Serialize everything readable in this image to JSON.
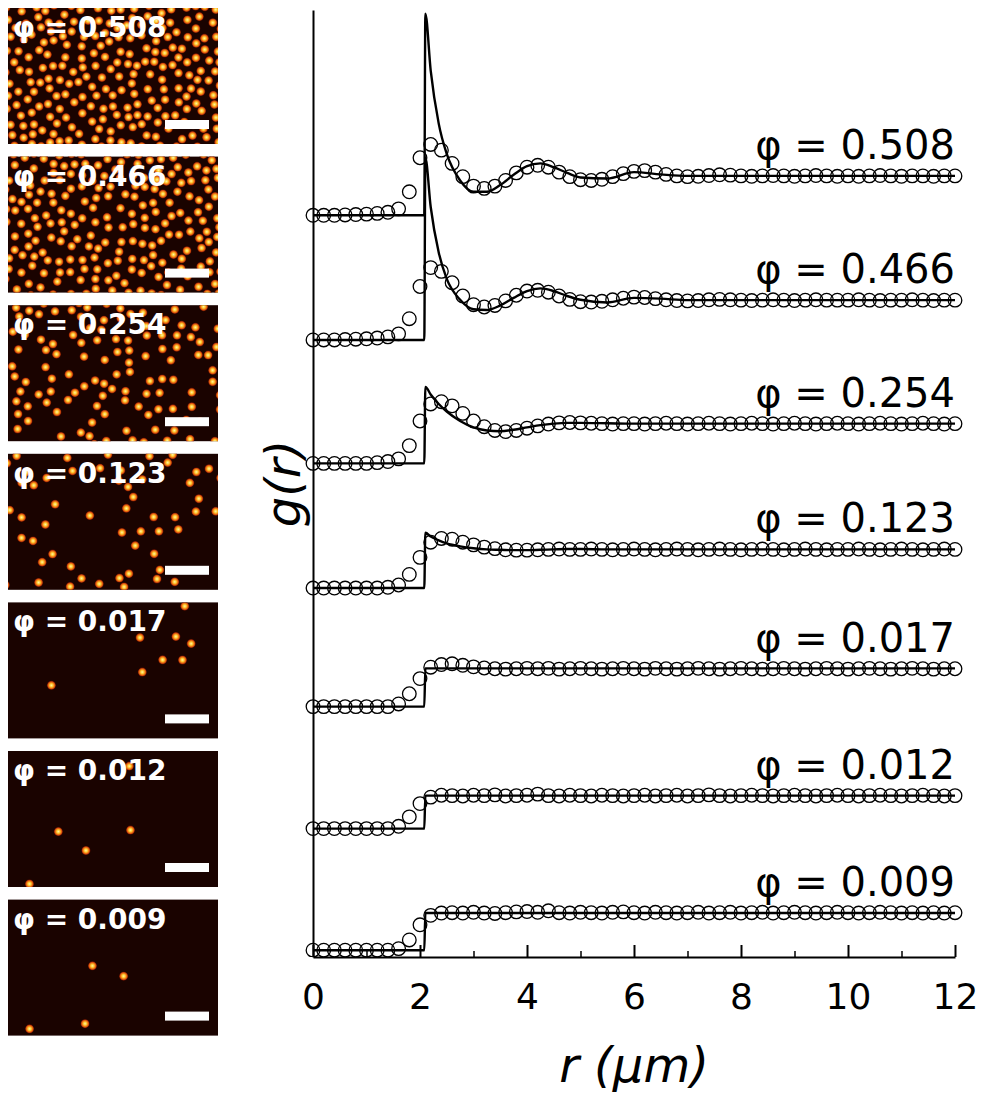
{
  "chart_data": {
    "type": "line",
    "x_label": "r (μm)",
    "y_label": "g(r)",
    "xlim": [
      0,
      12
    ],
    "xticks": [
      0,
      2,
      4,
      6,
      8,
      10,
      12
    ],
    "minor_xticks": [
      1,
      3,
      5,
      7,
      9,
      11
    ],
    "ylim": [
      0,
      25
    ],
    "tick_labels": "x",
    "grid": false,
    "color": "#000000",
    "marker": "circle",
    "line_style": "solid",
    "x": [
      0,
      0.2,
      0.4,
      0.6,
      0.8,
      1,
      1.2,
      1.4,
      1.6,
      1.8,
      2,
      2.2,
      2.4,
      2.6,
      2.8,
      3,
      3.2,
      3.4,
      3.6,
      3.8,
      4,
      4.2,
      4.4,
      4.6,
      4.8,
      5,
      5.2,
      5.4,
      5.6,
      5.8,
      6,
      6.2,
      6.4,
      6.6,
      6.8,
      7,
      7.2,
      7.4,
      7.6,
      7.8,
      8,
      8.2,
      8.4,
      8.6,
      8.8,
      9,
      9.2,
      9.4,
      9.6,
      9.8,
      10,
      10.2,
      10.4,
      10.6,
      10.8,
      11,
      11.2,
      11.4,
      11.6,
      11.8,
      12
    ],
    "fit_x": [
      0,
      2.08,
      2.1,
      2.2,
      2.35,
      2.5,
      2.75,
      3,
      3.25,
      3.5,
      3.75,
      4,
      4.25,
      4.5,
      4.75,
      5,
      5.5,
      6,
      6.5,
      7,
      8,
      9,
      10,
      11,
      12
    ],
    "series": [
      {
        "name": "φ = 0.508",
        "phi": 0.508,
        "values": [
          19.58,
          19.58,
          19.58,
          19.59,
          19.6,
          19.61,
          19.63,
          19.66,
          19.75,
          20.2,
          21.1,
          21.45,
          21.3,
          20.95,
          20.6,
          20.35,
          20.29,
          20.35,
          20.5,
          20.7,
          20.85,
          20.9,
          20.85,
          20.72,
          20.6,
          20.52,
          20.5,
          20.53,
          20.6,
          20.68,
          20.74,
          20.76,
          20.72,
          20.66,
          20.62,
          20.6,
          20.61,
          20.63,
          20.65,
          20.64,
          20.62,
          20.61,
          20.62,
          20.63,
          20.62,
          20.61,
          20.62,
          20.63,
          20.62,
          20.61,
          20.62,
          20.61,
          20.62,
          20.63,
          20.62,
          20.61,
          20.62,
          20.62,
          20.61,
          20.62,
          20.62
        ],
        "fit_values": [
          19.58,
          19.58,
          24.9,
          23.4,
          22.0,
          21.2,
          20.5,
          20.2,
          20.2,
          20.38,
          20.65,
          20.88,
          20.95,
          20.85,
          20.7,
          20.58,
          20.55,
          20.72,
          20.66,
          20.62,
          20.62,
          20.62,
          20.62,
          20.62,
          20.62
        ]
      },
      {
        "name": "φ = 0.466",
        "phi": 0.466,
        "values": [
          16.29,
          16.29,
          16.29,
          16.3,
          16.31,
          16.32,
          16.34,
          16.37,
          16.45,
          16.85,
          17.7,
          18.2,
          18.1,
          17.8,
          17.45,
          17.22,
          17.16,
          17.2,
          17.32,
          17.47,
          17.58,
          17.6,
          17.55,
          17.45,
          17.36,
          17.3,
          17.29,
          17.31,
          17.35,
          17.39,
          17.42,
          17.41,
          17.38,
          17.35,
          17.33,
          17.32,
          17.33,
          17.35,
          17.36,
          17.35,
          17.34,
          17.33,
          17.34,
          17.35,
          17.34,
          17.33,
          17.34,
          17.35,
          17.34,
          17.34,
          17.34,
          17.35,
          17.34,
          17.33,
          17.34,
          17.34,
          17.35,
          17.34,
          17.33,
          17.34,
          17.34
        ],
        "fit_values": [
          16.29,
          16.29,
          21.1,
          19.8,
          18.6,
          17.9,
          17.35,
          17.1,
          17.08,
          17.2,
          17.4,
          17.58,
          17.65,
          17.58,
          17.45,
          17.35,
          17.28,
          17.4,
          17.38,
          17.34,
          17.34,
          17.34,
          17.34,
          17.34,
          17.34
        ]
      },
      {
        "name": "φ = 0.254",
        "phi": 0.254,
        "values": [
          13.03,
          13.03,
          13.03,
          13.03,
          13.03,
          13.03,
          13.05,
          13.08,
          13.15,
          13.5,
          14.15,
          14.6,
          14.66,
          14.55,
          14.35,
          14.15,
          14.0,
          13.9,
          13.87,
          13.9,
          13.96,
          14.02,
          14.07,
          14.1,
          14.11,
          14.1,
          14.09,
          14.08,
          14.07,
          14.08,
          14.08,
          14.07,
          14.08,
          14.09,
          14.08,
          14.07,
          14.08,
          14.09,
          14.08,
          14.07,
          14.08,
          14.09,
          14.08,
          14.07,
          14.08,
          14.09,
          14.08,
          14.07,
          14.08,
          14.09,
          14.08,
          14.07,
          14.08,
          14.09,
          14.08,
          14.07,
          14.08,
          14.09,
          14.08,
          14.07,
          14.08
        ],
        "fit_values": [
          13.03,
          13.03,
          15.05,
          14.85,
          14.6,
          14.4,
          14.15,
          13.98,
          13.9,
          13.88,
          13.92,
          13.98,
          14.04,
          14.08,
          14.1,
          14.1,
          14.09,
          14.08,
          14.08,
          14.08,
          14.08,
          14.08,
          14.08,
          14.08,
          14.08
        ]
      },
      {
        "name": "φ = 0.123",
        "phi": 0.123,
        "values": [
          9.74,
          9.74,
          9.74,
          9.74,
          9.74,
          9.74,
          9.74,
          9.76,
          9.82,
          10.1,
          10.55,
          10.95,
          11.05,
          11.03,
          10.95,
          10.88,
          10.82,
          10.78,
          10.75,
          10.74,
          10.74,
          10.75,
          10.76,
          10.77,
          10.76,
          10.76,
          10.77,
          10.76,
          10.75,
          10.76,
          10.77,
          10.76,
          10.75,
          10.76,
          10.77,
          10.76,
          10.75,
          10.76,
          10.77,
          10.76,
          10.75,
          10.76,
          10.77,
          10.76,
          10.75,
          10.76,
          10.77,
          10.76,
          10.75,
          10.76,
          10.76,
          10.77,
          10.76,
          10.75,
          10.76,
          10.77,
          10.76,
          10.75,
          10.76,
          10.77,
          10.76
        ],
        "fit_values": [
          9.74,
          9.74,
          11.2,
          11.1,
          11.0,
          10.92,
          10.84,
          10.79,
          10.76,
          10.75,
          10.74,
          10.74,
          10.75,
          10.76,
          10.77,
          10.77,
          10.76,
          10.76,
          10.76,
          10.76,
          10.76,
          10.76,
          10.76,
          10.76,
          10.76
        ]
      },
      {
        "name": "φ = 0.017",
        "phi": 0.017,
        "values": [
          6.61,
          6.61,
          6.61,
          6.61,
          6.61,
          6.61,
          6.61,
          6.61,
          6.68,
          6.95,
          7.35,
          7.65,
          7.72,
          7.74,
          7.7,
          7.66,
          7.63,
          7.61,
          7.6,
          7.61,
          7.62,
          7.61,
          7.62,
          7.6,
          7.61,
          7.62,
          7.61,
          7.6,
          7.61,
          7.62,
          7.61,
          7.6,
          7.62,
          7.61,
          7.6,
          7.61,
          7.62,
          7.61,
          7.6,
          7.61,
          7.62,
          7.61,
          7.6,
          7.61,
          7.62,
          7.61,
          7.6,
          7.61,
          7.62,
          7.61,
          7.6,
          7.61,
          7.62,
          7.61,
          7.6,
          7.61,
          7.62,
          7.61,
          7.6,
          7.61,
          7.61
        ],
        "fit_values": [
          6.61,
          6.61,
          7.62,
          7.62,
          7.62,
          7.62,
          7.62,
          7.62,
          7.62,
          7.62,
          7.62,
          7.62,
          7.62,
          7.62,
          7.62,
          7.62,
          7.62,
          7.62,
          7.62,
          7.62,
          7.62,
          7.62,
          7.62,
          7.62,
          7.62
        ]
      },
      {
        "name": "φ = 0.012",
        "phi": 0.012,
        "values": [
          3.39,
          3.39,
          3.39,
          3.39,
          3.39,
          3.39,
          3.39,
          3.39,
          3.45,
          3.7,
          4.05,
          4.22,
          4.27,
          4.26,
          4.25,
          4.27,
          4.26,
          4.28,
          4.25,
          4.26,
          4.27,
          4.3,
          4.26,
          4.25,
          4.27,
          4.26,
          4.25,
          4.27,
          4.26,
          4.25,
          4.26,
          4.27,
          4.25,
          4.26,
          4.27,
          4.25,
          4.26,
          4.28,
          4.26,
          4.25,
          4.26,
          4.27,
          4.26,
          4.25,
          4.26,
          4.27,
          4.26,
          4.25,
          4.26,
          4.27,
          4.26,
          4.25,
          4.26,
          4.27,
          4.26,
          4.25,
          4.26,
          4.27,
          4.26,
          4.25,
          4.26
        ],
        "fit_values": [
          3.39,
          3.39,
          4.26,
          4.26,
          4.26,
          4.26,
          4.26,
          4.26,
          4.26,
          4.26,
          4.26,
          4.26,
          4.26,
          4.26,
          4.26,
          4.26,
          4.26,
          4.26,
          4.26,
          4.26,
          4.26,
          4.26,
          4.26,
          4.26,
          4.26
        ]
      },
      {
        "name": "φ = 0.009",
        "phi": 0.009,
        "values": [
          0.18,
          0.18,
          0.18,
          0.18,
          0.18,
          0.18,
          0.18,
          0.18,
          0.22,
          0.45,
          0.85,
          1.1,
          1.16,
          1.17,
          1.16,
          1.18,
          1.16,
          1.15,
          1.17,
          1.19,
          1.2,
          1.18,
          1.22,
          1.17,
          1.16,
          1.18,
          1.17,
          1.16,
          1.18,
          1.19,
          1.17,
          1.16,
          1.18,
          1.17,
          1.16,
          1.17,
          1.18,
          1.16,
          1.17,
          1.18,
          1.16,
          1.17,
          1.18,
          1.16,
          1.17,
          1.18,
          1.17,
          1.16,
          1.17,
          1.18,
          1.17,
          1.16,
          1.17,
          1.18,
          1.17,
          1.16,
          1.17,
          1.16,
          1.17,
          1.16,
          1.17
        ],
        "fit_values": [
          0.18,
          0.18,
          1.16,
          1.16,
          1.16,
          1.16,
          1.16,
          1.16,
          1.16,
          1.16,
          1.16,
          1.16,
          1.16,
          1.16,
          1.16,
          1.16,
          1.16,
          1.16,
          1.16,
          1.16,
          1.16,
          1.16,
          1.16,
          1.16,
          1.16
        ]
      }
    ]
  }
}
